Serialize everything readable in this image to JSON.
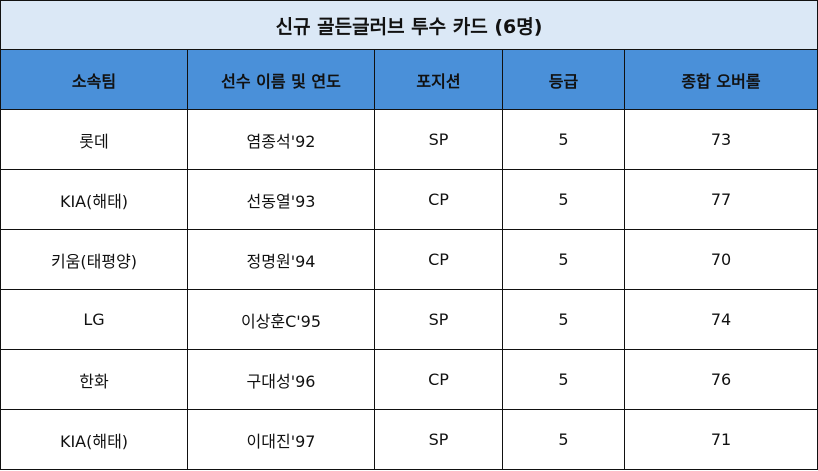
{
  "title": "신규 골든글러브 투수 카드 (6명)",
  "colors": {
    "title_bg": "#dbe8f6",
    "header_bg": "#4a90d9",
    "border": "#111111"
  },
  "columns": [
    "소속팀",
    "선수 이름 및 연도",
    "포지션",
    "등급",
    "종합 오버롤"
  ],
  "rows": [
    [
      "롯데",
      "염종석'92",
      "SP",
      "5",
      "73"
    ],
    [
      "KIA(해태)",
      "선동열'93",
      "CP",
      "5",
      "77"
    ],
    [
      "키움(태평양)",
      "정명원'94",
      "CP",
      "5",
      "70"
    ],
    [
      "LG",
      "이상훈C'95",
      "SP",
      "5",
      "74"
    ],
    [
      "한화",
      "구대성'96",
      "CP",
      "5",
      "76"
    ],
    [
      "KIA(해태)",
      "이대진'97",
      "SP",
      "5",
      "71"
    ]
  ]
}
